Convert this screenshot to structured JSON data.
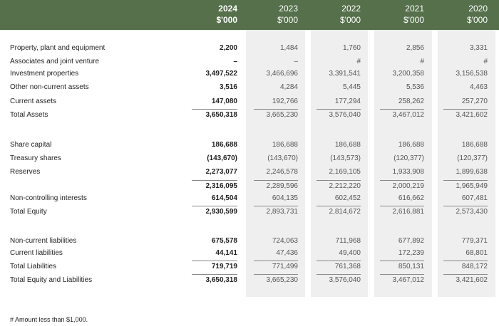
{
  "columns": [
    {
      "year": "2024",
      "unit": "$'000"
    },
    {
      "year": "2023",
      "unit": "$'000"
    },
    {
      "year": "2022",
      "unit": "$'000"
    },
    {
      "year": "2021",
      "unit": "$'000"
    },
    {
      "year": "2020",
      "unit": "$'000"
    }
  ],
  "sections": [
    {
      "rows": [
        {
          "label": "Property, plant and equipment",
          "values": [
            "2,200",
            "1,484",
            "1,760",
            "2,856",
            "3,331"
          ]
        },
        {
          "label": "Associates and joint venture",
          "values": [
            "–",
            "–",
            "#",
            "#",
            "#"
          ]
        },
        {
          "label": "Investment properties",
          "values": [
            "3,497,522",
            "3,466,696",
            "3,391,541",
            "3,200,358",
            "3,156,538"
          ]
        },
        {
          "label": "Other non-current assets",
          "values": [
            "3,516",
            "4,284",
            "5,445",
            "5,536",
            "4,463"
          ]
        },
        {
          "label": "Current assets",
          "values": [
            "147,080",
            "192,766",
            "177,294",
            "258,262",
            "257,270"
          ]
        },
        {
          "label": "Total Assets",
          "values": [
            "3,650,318",
            "3,665,230",
            "3,576,040",
            "3,467,012",
            "3,421,602"
          ],
          "total": true
        }
      ]
    },
    {
      "rows": [
        {
          "label": "Share capital",
          "values": [
            "186,688",
            "186,688",
            "186,688",
            "186,688",
            "186,688"
          ]
        },
        {
          "label": "Treasury shares",
          "values": [
            "(143,670)",
            "(143,670)",
            "(143,573)",
            "(120,377)",
            "(120,377)"
          ]
        },
        {
          "label": "Reserves",
          "values": [
            "2,273,077",
            "2,246,578",
            "2,169,105",
            "1,933,908",
            "1,899,638"
          ]
        },
        {
          "label": "",
          "values": [
            "2,316,095",
            "2,289,596",
            "2,212,220",
            "2,000,219",
            "1,965,949"
          ],
          "subtotal": true
        },
        {
          "label": "Non-controlling interests",
          "values": [
            "614,504",
            "604,135",
            "602,452",
            "616,662",
            "607,481"
          ]
        },
        {
          "label": "Total Equity",
          "values": [
            "2,930,599",
            "2,893,731",
            "2,814,672",
            "2,616,881",
            "2,573,430"
          ],
          "total": true
        }
      ]
    },
    {
      "rows": [
        {
          "label": "Non-current liabilities",
          "values": [
            "675,578",
            "724,063",
            "711,968",
            "677,892",
            "779,371"
          ]
        },
        {
          "label": "Current liabilities",
          "values": [
            "44,141",
            "47,436",
            "49,400",
            "172,239",
            "68,801"
          ]
        },
        {
          "label": "Total Liabilities",
          "values": [
            "719,719",
            "771,499",
            "761,368",
            "850,131",
            "848,172"
          ],
          "total": true
        },
        {
          "label": "Total Equity and Liabilities",
          "values": [
            "3,650,318",
            "3,665,230",
            "3,576,040",
            "3,467,012",
            "3,421,602"
          ],
          "total": true
        }
      ]
    }
  ],
  "footnote": "# Amount less than $1,000.",
  "colors": {
    "header": "#55704a",
    "shade": "#efefef"
  }
}
